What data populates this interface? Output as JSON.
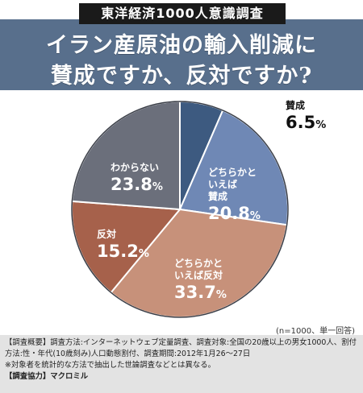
{
  "header": {
    "series_tag": "東洋経済1000人意識調査",
    "title_line1": "イラン産原油の輸入削減に",
    "title_line2": "賛成ですか、反対ですか?"
  },
  "colors": {
    "title_band": "#586f8c",
    "series_tag_bg": "#1a1a1a",
    "notes_bg": "#e3e3e3"
  },
  "chart_data": {
    "type": "pie",
    "title": "イラン産原油の輸入削減に賛成ですか、反対ですか?",
    "unit": "%",
    "start_angle_deg": 0,
    "direction": "clockwise",
    "slices": [
      {
        "label": "賛成",
        "value": 6.5,
        "color": "#3d5a80"
      },
      {
        "label": "どちらかといえば賛成",
        "value": 20.8,
        "color": "#6f88b5"
      },
      {
        "label": "どちらかといえば反対",
        "value": 33.7,
        "color": "#c7917a"
      },
      {
        "label": "反対",
        "value": 15.2,
        "color": "#a6614b"
      },
      {
        "label": "わからない",
        "value": 23.8,
        "color": "#6b6f7b"
      }
    ]
  },
  "labels": {
    "yes": {
      "name": "賛成",
      "pct": "6.5"
    },
    "somewhat_yes": {
      "name_l1": "どちらかと",
      "name_l2": "いえば",
      "name_l3": "賛成",
      "pct": "20.8"
    },
    "somewhat_no": {
      "name_l1": "どちらかと",
      "name_l2": "いえば反対",
      "pct": "33.7"
    },
    "no": {
      "name": "反対",
      "pct": "15.2"
    },
    "unknown": {
      "name": "わからない",
      "pct": "23.8"
    },
    "unit": "%"
  },
  "sample_note": "(n=1000、単一回答)",
  "notes": {
    "line1": "【調査概要】調査方法:インターネットウェブ定量調査、調査対象:全国の20歳以上の男女1000人、割付",
    "line2": "方法:性・年代(10歳刻み)人口動態割付、調査期間:2012年1月26〜27日",
    "line3": "※対象者を統計的な方法で抽出した世論調査などとは異なる。",
    "line4_label": "【調査協力】",
    "line4_value": "マクロミル"
  }
}
